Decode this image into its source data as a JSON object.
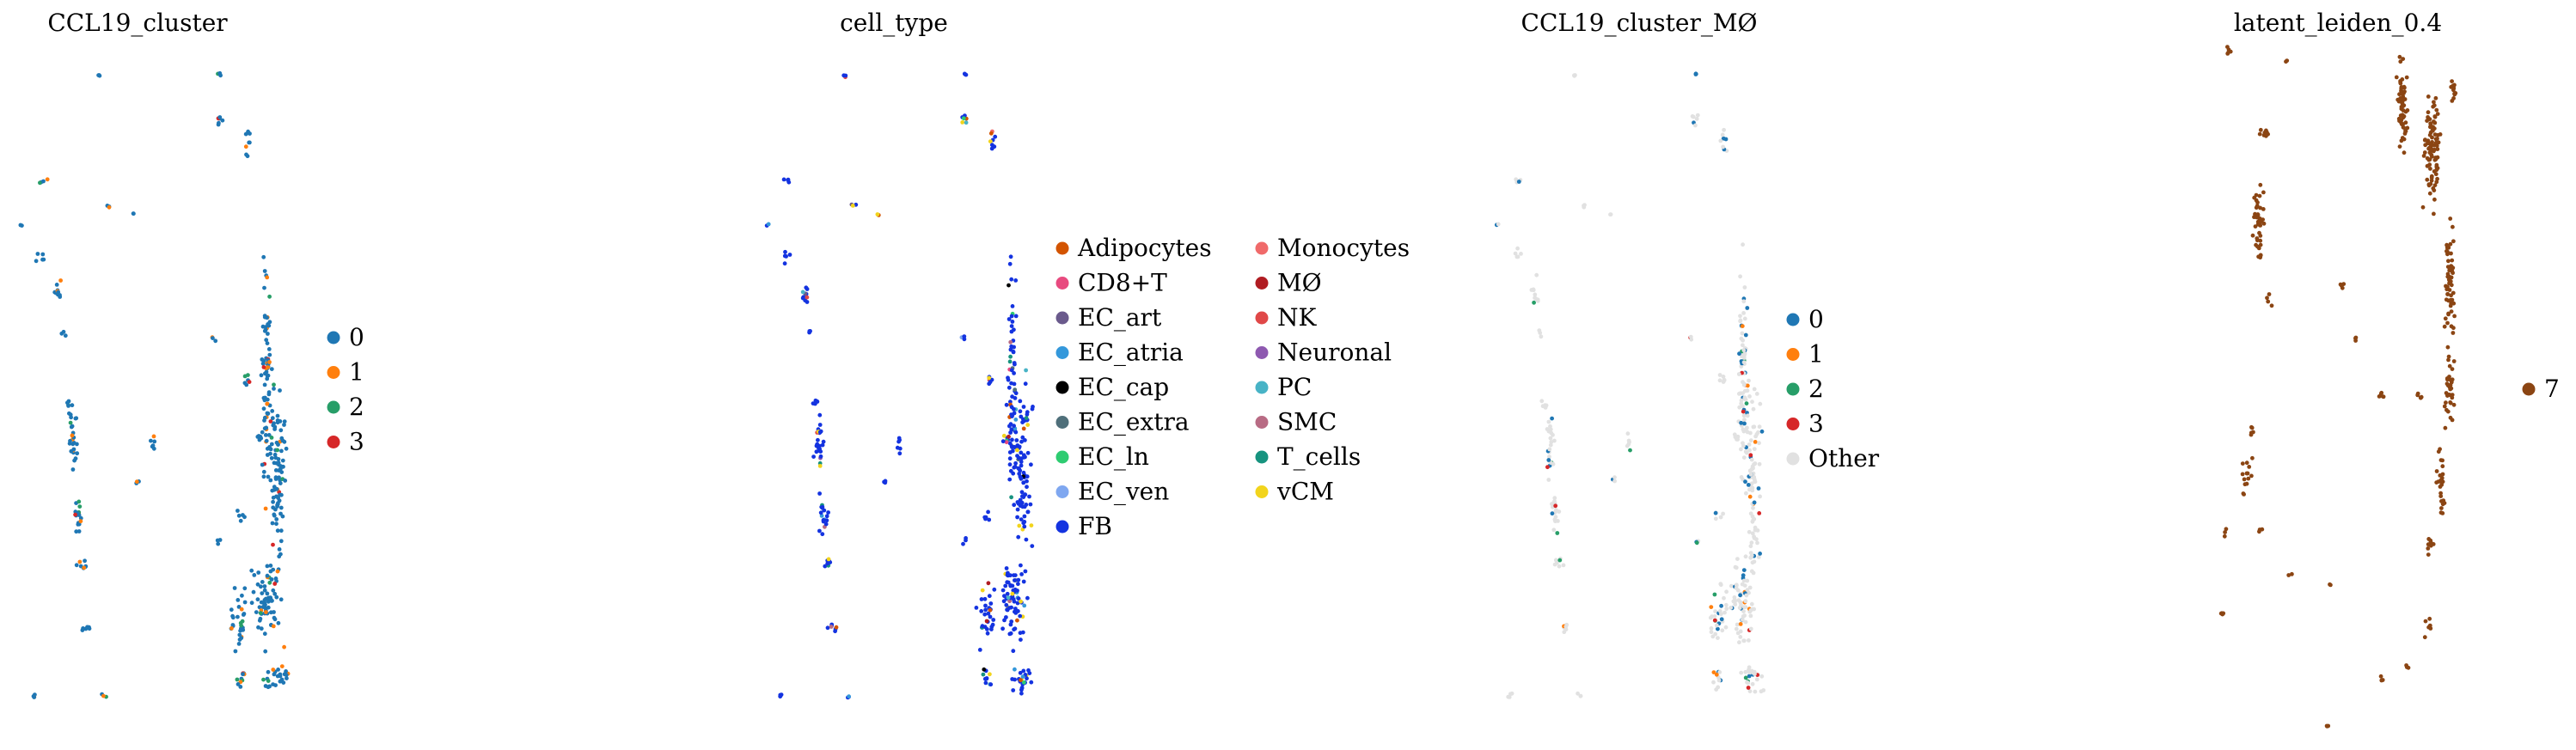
{
  "chart_data": [
    {
      "type": "scatter",
      "title": "CCL19_cluster",
      "legend_placement": "right",
      "legend": [
        {
          "label": "0",
          "color": "#1f77b4"
        },
        {
          "label": "1",
          "color": "#ff7f0e"
        },
        {
          "label": "2",
          "color": "#279e68"
        },
        {
          "label": "3",
          "color": "#d62728"
        }
      ]
    },
    {
      "type": "scatter",
      "title": "cell_type",
      "legend_placement": "right",
      "legend": [
        {
          "label": "Adipocytes",
          "color": "#d35400"
        },
        {
          "label": "CD8+T",
          "color": "#e84a7f"
        },
        {
          "label": "EC_art",
          "color": "#6a5a8c"
        },
        {
          "label": "EC_atria",
          "color": "#3498db"
        },
        {
          "label": "EC_cap",
          "color": "#000000"
        },
        {
          "label": "EC_extra",
          "color": "#4f6f7a"
        },
        {
          "label": "EC_ln",
          "color": "#2ecc71"
        },
        {
          "label": "EC_ven",
          "color": "#7fa7f0"
        },
        {
          "label": "FB",
          "color": "#1433e0"
        },
        {
          "label": "Monocytes",
          "color": "#f06a6a"
        },
        {
          "label": "MØ",
          "color": "#b01c22"
        },
        {
          "label": "NK",
          "color": "#e04848"
        },
        {
          "label": "Neuronal",
          "color": "#8e59b0"
        },
        {
          "label": "PC",
          "color": "#48b3c6"
        },
        {
          "label": "SMC",
          "color": "#b86b84"
        },
        {
          "label": "T_cells",
          "color": "#17937f"
        },
        {
          "label": "vCM",
          "color": "#f2d41c"
        }
      ]
    },
    {
      "type": "scatter",
      "title": "CCL19_cluster_MØ",
      "legend_placement": "right",
      "legend": [
        {
          "label": "0",
          "color": "#1f77b4"
        },
        {
          "label": "1",
          "color": "#ff7f0e"
        },
        {
          "label": "2",
          "color": "#279e68"
        },
        {
          "label": "3",
          "color": "#d62728"
        },
        {
          "label": "Other",
          "color": "#e1e1e1"
        }
      ]
    },
    {
      "type": "scatter",
      "title": "latent_leiden_0.4",
      "legend_placement": "right",
      "legend": [
        {
          "label": "7",
          "color": "#8b4513"
        }
      ]
    }
  ]
}
